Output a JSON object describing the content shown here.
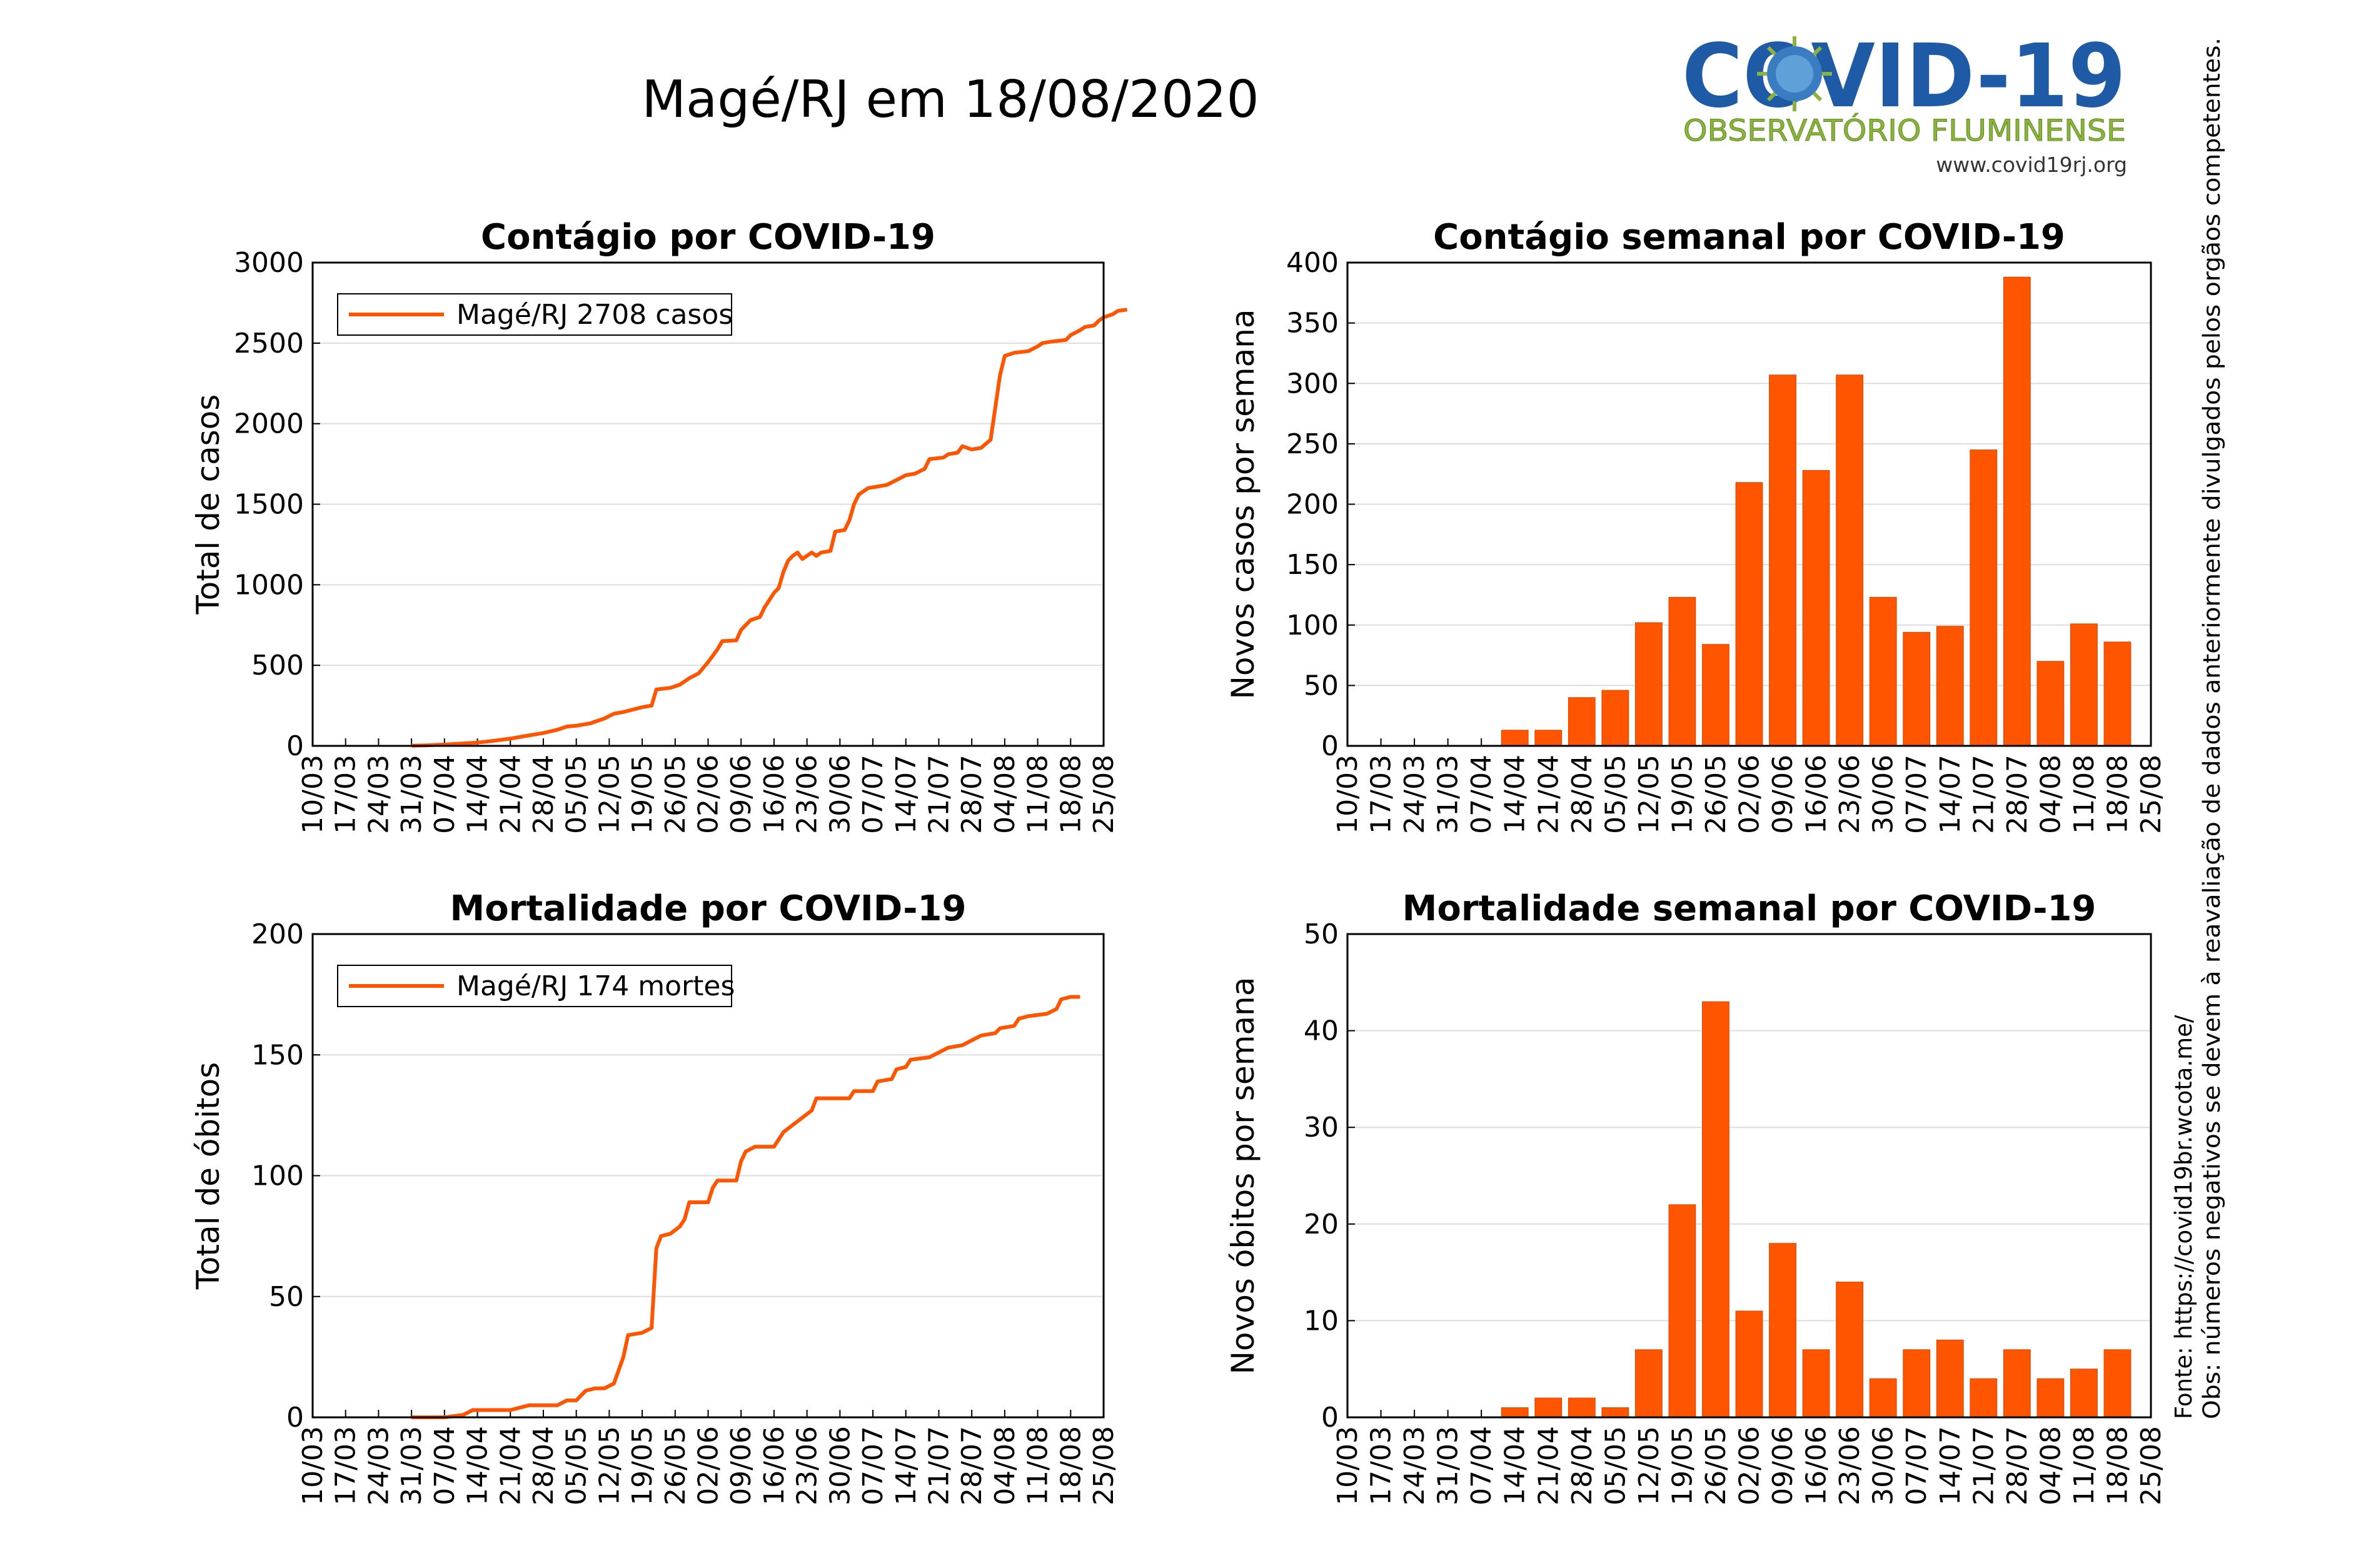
{
  "page": {
    "title": "Magé/RJ em 18/08/2020",
    "logo": {
      "main_text": "COVID-19",
      "sub_text": "OBSERVATÓRIO FLUMINENSE",
      "url_text": "www.covid19rj.org",
      "colors": {
        "blue": "#1f5aa6",
        "green": "#8cb43c",
        "virus": "#3a7cc0"
      }
    },
    "side_notes": {
      "source": "Fonte: https://covid19br.wcota.me/",
      "note": "Obs: números negativos se devem à reavaliação de dados anteriormente divulgados pelos orgãos competentes."
    },
    "colors": {
      "series": "#ff5500",
      "grid": "#dddddd",
      "axis": "#000000"
    }
  },
  "chart_data": [
    {
      "id": "cumulative-cases",
      "type": "line",
      "title": "Contágio por COVID-19",
      "ylabel": "Total de casos",
      "xlabel": "",
      "xticks": [
        "10/03",
        "17/03",
        "24/03",
        "31/03",
        "07/04",
        "14/04",
        "21/04",
        "28/04",
        "05/05",
        "12/05",
        "19/05",
        "26/05",
        "02/06",
        "09/06",
        "16/06",
        "23/06",
        "30/06",
        "07/07",
        "14/07",
        "21/07",
        "28/07",
        "04/08",
        "11/08",
        "18/08",
        "25/08"
      ],
      "yticks": [
        0,
        500,
        1000,
        1500,
        2000,
        2500,
        3000
      ],
      "ylim": [
        0,
        3000
      ],
      "xlim_days": [
        0,
        168
      ],
      "legend": "Magé/RJ  2708 casos",
      "legend_position": "top-left",
      "grid": true,
      "series": [
        {
          "name": "Magé/RJ",
          "points": [
            [
              21,
              1
            ],
            [
              24,
              3
            ],
            [
              28,
              8
            ],
            [
              32,
              15
            ],
            [
              35,
              20
            ],
            [
              38,
              30
            ],
            [
              42,
              45
            ],
            [
              45,
              60
            ],
            [
              49,
              80
            ],
            [
              52,
              100
            ],
            [
              54,
              120
            ],
            [
              56,
              125
            ],
            [
              59,
              140
            ],
            [
              62,
              170
            ],
            [
              64,
              200
            ],
            [
              66,
              210
            ],
            [
              68,
              225
            ],
            [
              70,
              240
            ],
            [
              72,
              250
            ],
            [
              73,
              350
            ],
            [
              76,
              360
            ],
            [
              78,
              380
            ],
            [
              80,
              420
            ],
            [
              82,
              450
            ],
            [
              84,
              520
            ],
            [
              86,
              600
            ],
            [
              87,
              650
            ],
            [
              90,
              655
            ],
            [
              91,
              720
            ],
            [
              93,
              780
            ],
            [
              95,
              800
            ],
            [
              96,
              860
            ],
            [
              98,
              950
            ],
            [
              99,
              980
            ],
            [
              100,
              1080
            ],
            [
              101,
              1150
            ],
            [
              102,
              1180
            ],
            [
              103,
              1200
            ],
            [
              104,
              1160
            ],
            [
              105,
              1180
            ],
            [
              106,
              1200
            ],
            [
              107,
              1180
            ],
            [
              108,
              1200
            ],
            [
              110,
              1210
            ],
            [
              111,
              1330
            ],
            [
              113,
              1340
            ],
            [
              114,
              1400
            ],
            [
              115,
              1500
            ],
            [
              116,
              1560
            ],
            [
              118,
              1600
            ],
            [
              120,
              1610
            ],
            [
              122,
              1620
            ],
            [
              124,
              1650
            ],
            [
              126,
              1680
            ],
            [
              128,
              1690
            ],
            [
              130,
              1720
            ],
            [
              131,
              1780
            ],
            [
              134,
              1790
            ],
            [
              135,
              1810
            ],
            [
              137,
              1820
            ],
            [
              138,
              1860
            ],
            [
              140,
              1840
            ],
            [
              142,
              1850
            ],
            [
              144,
              1900
            ],
            [
              145,
              2100
            ],
            [
              146,
              2300
            ],
            [
              147,
              2420
            ],
            [
              149,
              2440
            ],
            [
              152,
              2450
            ],
            [
              154,
              2480
            ],
            [
              155,
              2500
            ],
            [
              157,
              2510
            ],
            [
              160,
              2520
            ],
            [
              161,
              2550
            ],
            [
              163,
              2580
            ],
            [
              164,
              2600
            ],
            [
              166,
              2610
            ],
            [
              167,
              2640
            ],
            [
              168,
              2660
            ],
            [
              170,
              2680
            ],
            [
              171,
              2700
            ],
            [
              173,
              2708
            ]
          ]
        }
      ]
    },
    {
      "id": "weekly-cases",
      "type": "bar",
      "title": "Contágio semanal por COVID-19",
      "ylabel": "Novos casos por semana",
      "xlabel": "",
      "categories": [
        "10/03",
        "17/03",
        "24/03",
        "31/03",
        "07/04",
        "14/04",
        "21/04",
        "28/04",
        "05/05",
        "12/05",
        "19/05",
        "26/05",
        "02/06",
        "09/06",
        "16/06",
        "23/06",
        "30/06",
        "07/07",
        "14/07",
        "21/07",
        "28/07",
        "04/08",
        "11/08",
        "18/08",
        "25/08"
      ],
      "values": [
        0,
        0,
        0,
        0,
        0,
        13,
        13,
        40,
        46,
        102,
        123,
        84,
        218,
        307,
        228,
        307,
        123,
        94,
        99,
        245,
        388,
        70,
        101,
        86,
        null
      ],
      "yticks": [
        0,
        50,
        100,
        150,
        200,
        250,
        300,
        350,
        400
      ],
      "ylim": [
        0,
        400
      ],
      "grid": true
    },
    {
      "id": "cumulative-deaths",
      "type": "line",
      "title": "Mortalidade por COVID-19",
      "ylabel": "Total de óbitos",
      "xlabel": "",
      "xticks": [
        "10/03",
        "17/03",
        "24/03",
        "31/03",
        "07/04",
        "14/04",
        "21/04",
        "28/04",
        "05/05",
        "12/05",
        "19/05",
        "26/05",
        "02/06",
        "09/06",
        "16/06",
        "23/06",
        "30/06",
        "07/07",
        "14/07",
        "21/07",
        "28/07",
        "04/08",
        "11/08",
        "18/08",
        "25/08"
      ],
      "yticks": [
        0,
        50,
        100,
        150,
        200
      ],
      "ylim": [
        0,
        200
      ],
      "xlim_days": [
        0,
        168
      ],
      "legend": "Magé/RJ  174 mortes",
      "legend_position": "top-left",
      "grid": true,
      "series": [
        {
          "name": "Magé/RJ",
          "points": [
            [
              21,
              0
            ],
            [
              28,
              0
            ],
            [
              32,
              1
            ],
            [
              34,
              3
            ],
            [
              42,
              3
            ],
            [
              46,
              5
            ],
            [
              52,
              5
            ],
            [
              54,
              7
            ],
            [
              56,
              7
            ],
            [
              58,
              11
            ],
            [
              60,
              12
            ],
            [
              62,
              12
            ],
            [
              64,
              14
            ],
            [
              66,
              25
            ],
            [
              67,
              34
            ],
            [
              70,
              35
            ],
            [
              72,
              37
            ],
            [
              73,
              70
            ],
            [
              74,
              75
            ],
            [
              76,
              76
            ],
            [
              78,
              79
            ],
            [
              79,
              82
            ],
            [
              80,
              89
            ],
            [
              84,
              89
            ],
            [
              85,
              95
            ],
            [
              86,
              98
            ],
            [
              90,
              98
            ],
            [
              91,
              106
            ],
            [
              92,
              110
            ],
            [
              94,
              112
            ],
            [
              98,
              112
            ],
            [
              100,
              118
            ],
            [
              102,
              121
            ],
            [
              104,
              124
            ],
            [
              106,
              127
            ],
            [
              107,
              132
            ],
            [
              114,
              132
            ],
            [
              115,
              135
            ],
            [
              119,
              135
            ],
            [
              120,
              139
            ],
            [
              123,
              140
            ],
            [
              124,
              144
            ],
            [
              126,
              145
            ],
            [
              127,
              148
            ],
            [
              131,
              149
            ],
            [
              133,
              151
            ],
            [
              135,
              153
            ],
            [
              138,
              154
            ],
            [
              140,
              156
            ],
            [
              142,
              158
            ],
            [
              145,
              159
            ],
            [
              146,
              161
            ],
            [
              149,
              162
            ],
            [
              150,
              165
            ],
            [
              152,
              166
            ],
            [
              156,
              167
            ],
            [
              158,
              169
            ],
            [
              159,
              173
            ],
            [
              161,
              174
            ],
            [
              163,
              174
            ]
          ]
        }
      ]
    },
    {
      "id": "weekly-deaths",
      "type": "bar",
      "title": "Mortalidade semanal por COVID-19",
      "ylabel": "Novos óbitos por semana",
      "xlabel": "",
      "categories": [
        "10/03",
        "17/03",
        "24/03",
        "31/03",
        "07/04",
        "14/04",
        "21/04",
        "28/04",
        "05/05",
        "12/05",
        "19/05",
        "26/05",
        "02/06",
        "09/06",
        "16/06",
        "23/06",
        "30/06",
        "07/07",
        "14/07",
        "21/07",
        "28/07",
        "04/08",
        "11/08",
        "18/08",
        "25/08"
      ],
      "values": [
        0,
        0,
        0,
        0,
        0,
        1,
        2,
        2,
        1,
        7,
        22,
        43,
        11,
        18,
        7,
        14,
        4,
        7,
        8,
        4,
        7,
        4,
        5,
        7,
        null
      ],
      "yticks": [
        0,
        10,
        20,
        30,
        40,
        50
      ],
      "ylim": [
        0,
        50
      ],
      "grid": true
    }
  ]
}
